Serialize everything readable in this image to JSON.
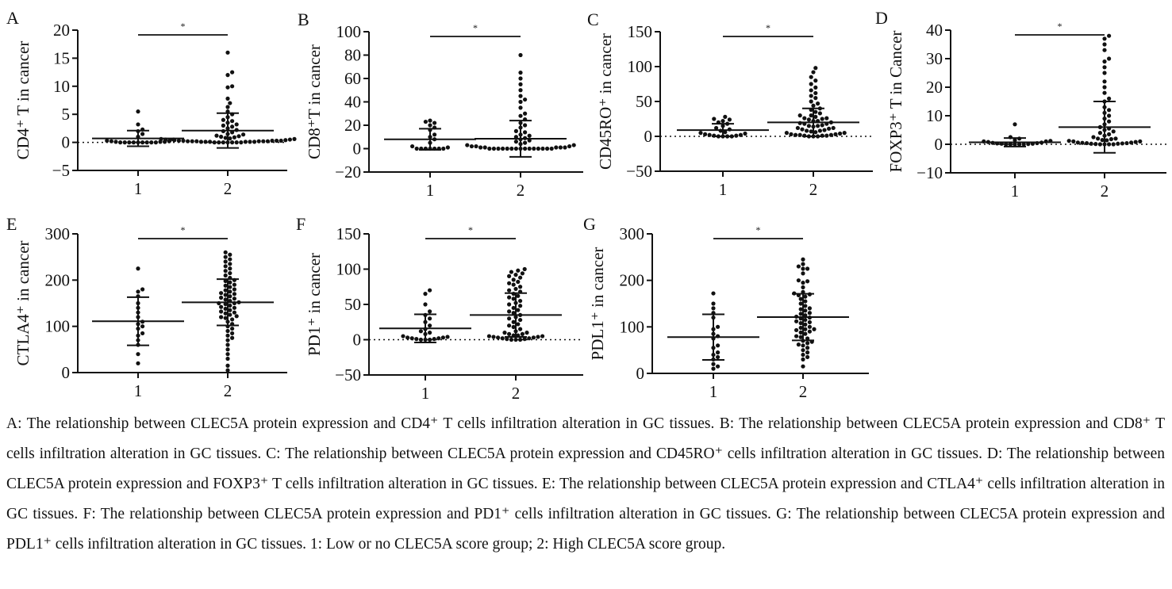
{
  "chart_data": [
    {
      "type": "scatter",
      "panel": "A",
      "ylabel": "CD4⁺ T in cancer",
      "ylim": [
        -5,
        20
      ],
      "yticks": [
        -5,
        0,
        5,
        10,
        15,
        20
      ],
      "categories": [
        "1",
        "2"
      ],
      "zero_line": true,
      "significance": "*",
      "groups": [
        {
          "category": "1",
          "mean": 0.7,
          "sd": 1.4,
          "points": [
            0,
            0,
            0,
            0.1,
            0.2,
            0,
            0,
            0.3,
            0.5,
            1,
            1.5,
            2,
            2.3,
            3.2,
            5.5,
            0,
            0.1,
            0,
            0.2,
            0,
            0.1,
            0
          ]
        },
        {
          "category": "2",
          "mean": 2.1,
          "sd": 3.1,
          "points": [
            16,
            12.5,
            12,
            10,
            9.8,
            7.8,
            7,
            6.3,
            5.5,
            5,
            4.5,
            4,
            3.8,
            3.5,
            3.2,
            3,
            2.8,
            2.5,
            2.2,
            2,
            1.8,
            1.5,
            1.2,
            1,
            0.8,
            0.6,
            0.5,
            0.4,
            0.3,
            0.3,
            0.2,
            0.2,
            0.1,
            0.1,
            0,
            0,
            0,
            0,
            0.1,
            0.2,
            0.3,
            0.4,
            0,
            0.1,
            0.2,
            0,
            0.3,
            0.1,
            0.5,
            0.2,
            0.4,
            0,
            0.1,
            0.3,
            0.2,
            0.6,
            0.7,
            0.9,
            1.1,
            1.4
          ]
        }
      ]
    },
    {
      "type": "scatter",
      "panel": "B",
      "ylabel": "CD8⁺T in cancer",
      "ylim": [
        -20,
        100
      ],
      "yticks": [
        -20,
        0,
        20,
        40,
        60,
        80,
        100
      ],
      "categories": [
        "1",
        "2"
      ],
      "zero_line": false,
      "significance": "*",
      "groups": [
        {
          "category": "1",
          "mean": 8,
          "sd": 9,
          "points": [
            24,
            23,
            22,
            20,
            18,
            16,
            12,
            10,
            8,
            5,
            2,
            0,
            0,
            0,
            0,
            0,
            0,
            1,
            0
          ]
        },
        {
          "category": "2",
          "mean": 8.5,
          "sd": 15.5,
          "points": [
            80,
            65,
            60,
            55,
            50,
            45,
            42,
            40,
            35,
            30,
            28,
            25,
            22,
            20,
            18,
            15,
            12,
            10,
            8,
            6,
            4,
            3,
            2,
            1,
            1,
            0,
            0,
            0,
            0,
            0,
            0,
            0,
            0,
            0,
            1,
            2,
            0,
            0,
            1,
            0,
            0,
            2,
            3,
            1,
            0,
            0,
            5,
            7,
            9,
            11,
            14
          ]
        }
      ]
    },
    {
      "type": "scatter",
      "panel": "C",
      "ylabel": "CD45RO⁺ in cancer",
      "ylim": [
        -50,
        150
      ],
      "yticks": [
        -50,
        0,
        50,
        100,
        150
      ],
      "categories": [
        "1",
        "2"
      ],
      "zero_line": true,
      "significance": "*",
      "groups": [
        {
          "category": "1",
          "mean": 9,
          "sd": 9,
          "points": [
            28,
            25,
            24,
            22,
            20,
            18,
            15,
            12,
            10,
            8,
            6,
            4,
            2,
            1,
            0,
            0,
            0,
            1,
            2,
            0,
            3,
            5
          ]
        },
        {
          "category": "2",
          "mean": 20,
          "sd": 20,
          "points": [
            98,
            92,
            85,
            80,
            75,
            70,
            66,
            62,
            58,
            55,
            50,
            47,
            44,
            40,
            38,
            35,
            33,
            30,
            28,
            26,
            25,
            24,
            22,
            20,
            19,
            18,
            16,
            15,
            14,
            12,
            11,
            10,
            9,
            8,
            7,
            6,
            5,
            4,
            3,
            2,
            2,
            1,
            1,
            0,
            0,
            0,
            1,
            2,
            3,
            5,
            8,
            12,
            15,
            18,
            22,
            26,
            30
          ]
        }
      ]
    },
    {
      "type": "scatter",
      "panel": "D",
      "ylabel": "FOXP3⁺ T in Cancer",
      "ylim": [
        -10,
        40
      ],
      "yticks": [
        -10,
        0,
        10,
        20,
        30,
        40
      ],
      "categories": [
        "1",
        "2"
      ],
      "zero_line": true,
      "significance": "*",
      "groups": [
        {
          "category": "1",
          "mean": 0.7,
          "sd": 1.5,
          "points": [
            7,
            2.5,
            2,
            1.5,
            1,
            0.8,
            0.5,
            0.3,
            0.2,
            0,
            0,
            0,
            0,
            0.1,
            0.2,
            0.4,
            0.6,
            1,
            1.2,
            0
          ]
        },
        {
          "category": "2",
          "mean": 6,
          "sd": 9,
          "points": [
            38,
            37,
            35,
            33,
            30,
            29,
            27,
            25,
            22,
            20,
            18,
            16,
            15,
            13,
            12,
            11,
            10,
            9,
            8,
            7,
            6,
            5.5,
            5,
            4.5,
            4,
            3.5,
            3,
            2.5,
            2,
            1.8,
            1.5,
            1.2,
            1,
            0.8,
            0.6,
            0.5,
            0.4,
            0.3,
            0.2,
            0.1,
            0,
            0,
            0,
            0,
            0.2,
            0.4,
            0.6,
            1,
            1.4,
            2
          ]
        }
      ]
    },
    {
      "type": "scatter",
      "panel": "E",
      "ylabel": "CTLA4⁺ in cancer",
      "ylim": [
        0,
        300
      ],
      "yticks": [
        0,
        100,
        200,
        300
      ],
      "categories": [
        "1",
        "2"
      ],
      "zero_line": false,
      "significance": "*",
      "groups": [
        {
          "category": "1",
          "mean": 111,
          "sd": 52,
          "points": [
            225,
            180,
            175,
            165,
            150,
            140,
            130,
            120,
            110,
            105,
            100,
            95,
            85,
            80,
            70,
            60,
            40,
            20
          ]
        },
        {
          "category": "2",
          "mean": 152,
          "sd": 50,
          "points": [
            260,
            255,
            250,
            245,
            240,
            235,
            230,
            225,
            220,
            215,
            210,
            205,
            200,
            198,
            195,
            190,
            188,
            185,
            180,
            178,
            175,
            172,
            170,
            168,
            165,
            162,
            160,
            158,
            155,
            152,
            150,
            150,
            148,
            145,
            142,
            140,
            138,
            135,
            132,
            130,
            128,
            125,
            122,
            120,
            118,
            115,
            110,
            105,
            100,
            95,
            90,
            85,
            80,
            75,
            70,
            60,
            50,
            40,
            30,
            15,
            5
          ]
        }
      ]
    },
    {
      "type": "scatter",
      "panel": "F",
      "ylabel": "PD1⁺ in cancer",
      "ylim": [
        -50,
        150
      ],
      "yticks": [
        -50,
        0,
        50,
        100,
        150
      ],
      "categories": [
        "1",
        "2"
      ],
      "zero_line": true,
      "significance": "*",
      "groups": [
        {
          "category": "1",
          "mean": 16,
          "sd": 20,
          "points": [
            70,
            65,
            50,
            40,
            35,
            30,
            25,
            20,
            15,
            12,
            10,
            8,
            5,
            4,
            3,
            2,
            1,
            0,
            0,
            0,
            1,
            2,
            3
          ]
        },
        {
          "category": "2",
          "mean": 35,
          "sd": 31,
          "points": [
            100,
            98,
            96,
            94,
            92,
            90,
            88,
            85,
            82,
            80,
            78,
            75,
            72,
            70,
            68,
            65,
            62,
            60,
            58,
            55,
            52,
            50,
            48,
            45,
            42,
            40,
            38,
            35,
            32,
            30,
            28,
            25,
            22,
            20,
            18,
            15,
            12,
            10,
            8,
            6,
            5,
            4,
            3,
            2,
            1,
            0,
            0,
            0,
            1,
            2,
            3,
            4,
            5,
            6,
            8,
            10
          ]
        }
      ]
    },
    {
      "type": "scatter",
      "panel": "G",
      "ylabel": "PDL1⁺ in cancer",
      "ylim": [
        0,
        300
      ],
      "yticks": [
        0,
        100,
        200,
        300
      ],
      "categories": [
        "1",
        "2"
      ],
      "zero_line": false,
      "significance": "*",
      "groups": [
        {
          "category": "1",
          "mean": 78,
          "sd": 49,
          "points": [
            172,
            150,
            140,
            130,
            120,
            100,
            95,
            85,
            80,
            75,
            60,
            55,
            45,
            40,
            35,
            30,
            20,
            15,
            10
          ]
        },
        {
          "category": "2",
          "mean": 121,
          "sd": 50,
          "points": [
            245,
            235,
            230,
            225,
            225,
            215,
            200,
            198,
            195,
            185,
            175,
            172,
            170,
            168,
            165,
            160,
            155,
            150,
            145,
            140,
            138,
            135,
            130,
            128,
            125,
            122,
            120,
            118,
            115,
            112,
            110,
            108,
            105,
            100,
            98,
            95,
            95,
            93,
            90,
            88,
            85,
            80,
            78,
            75,
            70,
            68,
            65,
            62,
            60,
            55,
            50,
            45,
            40,
            35,
            30,
            15
          ]
        }
      ]
    }
  ],
  "caption": "A: The relationship between CLEC5A protein expression and CD4⁺ T cells infiltration alteration in GC tissues. B: The relationship between CLEC5A protein expression and CD8⁺ T cells infiltration alteration in GC tissues. C: The relationship between CLEC5A protein expression and CD45RO⁺ cells infiltration alteration in GC tissues. D: The relationship between CLEC5A protein expression and FOXP3⁺ T cells infiltration alteration in GC tissues. E: The relationship between CLEC5A protein expression and CTLA4⁺ cells infiltration alteration in GC tissues. F: The relationship between CLEC5A protein expression and PD1⁺ cells infiltration alteration in GC tissues. G: The relationship between CLEC5A protein expression and PDL1⁺ cells infiltration alteration in GC tissues. 1: Low or no CLEC5A score group; 2: High CLEC5A score group.",
  "colors": {
    "marks": "#111111",
    "background": "#ffffff"
  }
}
